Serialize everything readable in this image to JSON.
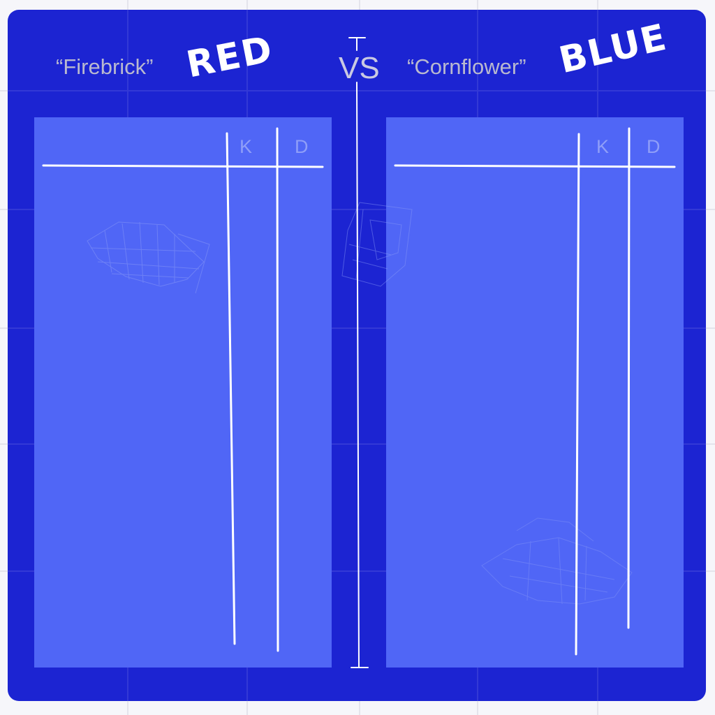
{
  "matchup": {
    "team_red": {
      "name": "“Firebrick”",
      "label": "RED",
      "kills_header": "K",
      "deaths_header": "D"
    },
    "versus": "VS",
    "team_blue": {
      "name": "“Cornflower”",
      "label": "BLUE",
      "kills_header": "K",
      "deaths_header": "D"
    }
  },
  "colors": {
    "board": "#1c24d2",
    "panel": "#5066f6",
    "line": "#ffffff",
    "team_name_text": "#b9b9cf",
    "column_header_text": "#8f9ef8"
  }
}
